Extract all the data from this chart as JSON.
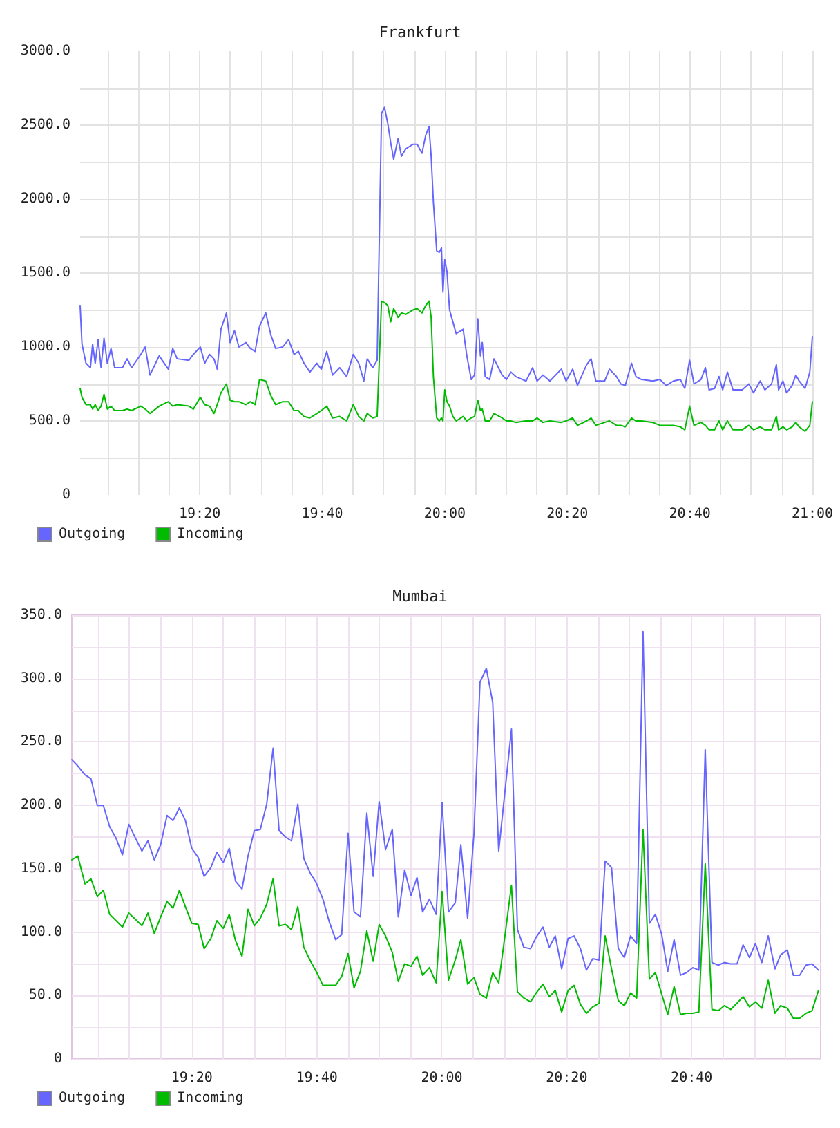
{
  "chart_data": [
    {
      "type": "line",
      "title": "Frankfurt",
      "x": [
        19.008,
        19.013,
        19.024,
        19.036,
        19.042,
        19.049,
        19.057,
        19.065,
        19.073,
        19.082,
        19.092,
        19.102,
        19.123,
        19.136,
        19.148,
        19.173,
        19.185,
        19.198,
        19.223,
        19.248,
        19.26,
        19.272,
        19.304,
        19.316,
        19.335,
        19.347,
        19.36,
        19.372,
        19.381,
        19.391,
        19.406,
        19.416,
        19.428,
        19.44,
        19.459,
        19.471,
        19.484,
        19.496,
        19.513,
        19.527,
        19.54,
        19.559,
        19.575,
        19.59,
        19.602,
        19.617,
        19.633,
        19.652,
        19.664,
        19.679,
        19.695,
        19.714,
        19.733,
        19.751,
        19.766,
        19.78,
        19.789,
        19.804,
        19.816,
        19.828,
        19.836,
        19.845,
        19.853,
        19.861,
        19.873,
        19.882,
        19.894,
        19.913,
        19.925,
        19.938,
        19.948,
        19.957,
        19.963,
        19.969,
        19.978,
        19.985,
        19.991,
        19.995,
        20.0,
        20.006,
        20.013,
        20.022,
        20.031,
        20.05,
        20.06,
        20.072,
        20.081,
        20.09,
        20.097,
        20.102,
        20.11,
        20.122,
        20.134,
        20.156,
        20.168,
        20.18,
        20.193,
        20.221,
        20.239,
        20.251,
        20.267,
        20.286,
        20.317,
        20.33,
        20.348,
        20.361,
        20.386,
        20.398,
        20.411,
        20.435,
        20.448,
        20.467,
        20.479,
        20.491,
        20.508,
        20.52,
        20.535,
        20.566,
        20.585,
        20.603,
        20.622,
        20.641,
        20.653,
        20.666,
        20.678,
        20.697,
        20.709,
        20.719,
        20.734,
        20.746,
        20.756,
        20.769,
        20.784,
        20.809,
        20.827,
        20.84,
        20.858,
        20.871,
        20.889,
        20.902,
        20.908,
        20.92,
        20.93,
        20.945,
        20.955,
        20.964,
        20.98,
        20.993,
        21.0
      ],
      "series": [
        {
          "name": "Outgoing",
          "color": "#6666ff",
          "values": [
            1280,
            1020,
            890,
            860,
            1020,
            890,
            1050,
            860,
            1060,
            890,
            990,
            860,
            860,
            920,
            860,
            950,
            1000,
            810,
            940,
            850,
            990,
            920,
            910,
            950,
            1000,
            890,
            950,
            920,
            850,
            1120,
            1230,
            1030,
            1110,
            1000,
            1030,
            990,
            970,
            1140,
            1230,
            1080,
            990,
            1000,
            1050,
            950,
            970,
            890,
            830,
            890,
            850,
            970,
            810,
            860,
            800,
            950,
            890,
            770,
            920,
            860,
            910,
            2580,
            2620,
            2510,
            2380,
            2270,
            2410,
            2290,
            2340,
            2370,
            2370,
            2310,
            2430,
            2490,
            2290,
            1980,
            1650,
            1640,
            1670,
            1370,
            1590,
            1510,
            1250,
            1170,
            1090,
            1120,
            940,
            780,
            810,
            1190,
            940,
            1030,
            800,
            780,
            920,
            810,
            780,
            830,
            800,
            770,
            860,
            770,
            810,
            770,
            850,
            770,
            850,
            740,
            880,
            920,
            770,
            770,
            850,
            800,
            750,
            740,
            890,
            800,
            780,
            770,
            780,
            740,
            770,
            780,
            720,
            910,
            750,
            780,
            860,
            710,
            720,
            800,
            710,
            830,
            710,
            710,
            750,
            690,
            770,
            710,
            750,
            880,
            710,
            770,
            690,
            740,
            810,
            770,
            720,
            830,
            1070
          ]
        },
        {
          "name": "Incoming",
          "color": "#00bb00",
          "values": [
            720,
            660,
            610,
            610,
            580,
            610,
            570,
            600,
            680,
            580,
            600,
            570,
            570,
            580,
            570,
            600,
            580,
            550,
            600,
            630,
            600,
            610,
            600,
            580,
            660,
            610,
            600,
            550,
            610,
            690,
            750,
            640,
            630,
            630,
            610,
            630,
            610,
            780,
            770,
            670,
            610,
            630,
            630,
            570,
            570,
            530,
            520,
            550,
            570,
            600,
            520,
            530,
            500,
            610,
            530,
            500,
            550,
            520,
            530,
            1310,
            1300,
            1280,
            1170,
            1260,
            1200,
            1230,
            1220,
            1250,
            1260,
            1230,
            1280,
            1310,
            1200,
            800,
            520,
            500,
            520,
            500,
            710,
            630,
            600,
            530,
            500,
            530,
            500,
            520,
            530,
            640,
            570,
            580,
            500,
            500,
            550,
            520,
            500,
            500,
            490,
            500,
            500,
            520,
            490,
            500,
            490,
            500,
            520,
            470,
            500,
            520,
            470,
            490,
            500,
            470,
            470,
            460,
            520,
            500,
            500,
            490,
            470,
            470,
            470,
            460,
            440,
            600,
            470,
            490,
            470,
            440,
            440,
            500,
            440,
            500,
            440,
            440,
            470,
            440,
            460,
            440,
            440,
            530,
            440,
            460,
            440,
            460,
            490,
            460,
            430,
            470,
            630
          ]
        }
      ],
      "xlim": [
        19.008,
        21.0
      ],
      "xticks": [
        {
          "value": 19.0833,
          "label": null
        },
        {
          "value": 19.1667,
          "label": null
        },
        {
          "value": 19.25,
          "label": null
        },
        {
          "value": 19.3333,
          "label": "19:20"
        },
        {
          "value": 19.4167,
          "label": null
        },
        {
          "value": 19.5,
          "label": null
        },
        {
          "value": 19.5833,
          "label": null
        },
        {
          "value": 19.6667,
          "label": "19:40"
        },
        {
          "value": 19.75,
          "label": null
        },
        {
          "value": 19.8333,
          "label": null
        },
        {
          "value": 19.9167,
          "label": null
        },
        {
          "value": 20,
          "label": "20:00"
        },
        {
          "value": 20.0833,
          "label": null
        },
        {
          "value": 20.1667,
          "label": null
        },
        {
          "value": 20.25,
          "label": null
        },
        {
          "value": 20.3333,
          "label": "20:20"
        },
        {
          "value": 20.4167,
          "label": null
        },
        {
          "value": 20.5,
          "label": null
        },
        {
          "value": 20.5833,
          "label": null
        },
        {
          "value": 20.6667,
          "label": "20:40"
        },
        {
          "value": 20.75,
          "label": null
        },
        {
          "value": 20.8333,
          "label": null
        },
        {
          "value": 20.9167,
          "label": null
        },
        {
          "value": 21,
          "label": "21:00"
        }
      ],
      "ylim": [
        0,
        3000
      ],
      "yticks": [
        0,
        {
          "value": 250,
          "label": null
        },
        {
          "value": 500,
          "label": "500.0"
        },
        {
          "value": 750,
          "label": null
        },
        {
          "value": 1000,
          "label": "1000.0"
        },
        {
          "value": 1250,
          "label": null
        },
        {
          "value": 1500,
          "label": "1500.0"
        },
        {
          "value": 1750,
          "label": null
        },
        {
          "value": 2000,
          "label": "2000.0"
        },
        {
          "value": 2250,
          "label": null
        },
        {
          "value": 2500,
          "label": "2500.0"
        },
        {
          "value": 2750,
          "label": null
        },
        {
          "value": 3000,
          "label": "3000.0"
        }
      ],
      "grid": true,
      "legend": "bottom left"
    },
    {
      "type": "line",
      "title": "Mumbai",
      "x": [
        19.013,
        19.029,
        19.048,
        19.064,
        19.081,
        19.097,
        19.114,
        19.131,
        19.148,
        19.165,
        19.183,
        19.2,
        19.216,
        19.233,
        19.25,
        19.267,
        19.283,
        19.3,
        19.316,
        19.333,
        19.35,
        19.366,
        19.384,
        19.4,
        19.417,
        19.433,
        19.45,
        19.467,
        19.483,
        19.5,
        19.516,
        19.533,
        19.55,
        19.566,
        19.583,
        19.599,
        19.616,
        19.632,
        19.65,
        19.665,
        19.683,
        19.7,
        19.717,
        19.733,
        19.75,
        19.766,
        19.783,
        19.8,
        19.817,
        19.833,
        19.85,
        19.868,
        19.884,
        19.901,
        19.918,
        19.934,
        19.949,
        19.967,
        19.985,
        20.001,
        20.018,
        20.036,
        20.051,
        20.069,
        20.086,
        20.102,
        20.119,
        20.136,
        20.152,
        20.169,
        20.186,
        20.202,
        20.219,
        20.237,
        20.252,
        20.27,
        20.287,
        20.303,
        20.32,
        20.337,
        20.353,
        20.37,
        20.386,
        20.403,
        20.42,
        20.436,
        20.453,
        20.471,
        20.487,
        20.504,
        20.52,
        20.537,
        20.554,
        20.57,
        20.587,
        20.603,
        20.62,
        20.637,
        20.653,
        20.67,
        20.686,
        20.703,
        20.721,
        20.738,
        20.754,
        20.771,
        20.788,
        20.804,
        20.821,
        20.837,
        20.854,
        20.871,
        20.889,
        20.904,
        20.922,
        20.938,
        20.955,
        20.972,
        20.988,
        21.005
      ],
      "series": [
        {
          "name": "Outgoing",
          "color": "#6666ff",
          "values": [
            236,
            231,
            224,
            221,
            200,
            200,
            183,
            174,
            161,
            185,
            174,
            164,
            172,
            157,
            169,
            192,
            188,
            198,
            188,
            166,
            159,
            144,
            151,
            163,
            155,
            166,
            140,
            134,
            160,
            180,
            181,
            201,
            245,
            180,
            175,
            172,
            201,
            158,
            146,
            139,
            126,
            108,
            94,
            98,
            178,
            116,
            112,
            194,
            144,
            203,
            165,
            181,
            112,
            149,
            129,
            143,
            116,
            126,
            114,
            202,
            116,
            123,
            169,
            111,
            178,
            297,
            308,
            281,
            164,
            212,
            260,
            102,
            88,
            87,
            96,
            104,
            88,
            97,
            71,
            95,
            97,
            87,
            70,
            79,
            78,
            156,
            151,
            87,
            80,
            97,
            91,
            337,
            107,
            114,
            98,
            69,
            94,
            66,
            68,
            72,
            70,
            244,
            76,
            74,
            76,
            75,
            75,
            90,
            80,
            91,
            76,
            97,
            71,
            82,
            86,
            66,
            66,
            74,
            75,
            70
          ]
        },
        {
          "name": "Incoming",
          "color": "#00bb00",
          "values": [
            157,
            160,
            138,
            142,
            128,
            133,
            114,
            109,
            104,
            115,
            110,
            105,
            115,
            99,
            112,
            124,
            119,
            133,
            120,
            107,
            106,
            87,
            95,
            109,
            103,
            114,
            93,
            81,
            118,
            105,
            111,
            122,
            142,
            105,
            106,
            102,
            120,
            88,
            77,
            69,
            58,
            58,
            58,
            65,
            83,
            56,
            69,
            101,
            77,
            106,
            97,
            84,
            61,
            75,
            73,
            81,
            66,
            72,
            60,
            132,
            62,
            78,
            94,
            59,
            64,
            51,
            48,
            68,
            60,
            98,
            137,
            53,
            48,
            45,
            52,
            59,
            49,
            54,
            37,
            54,
            58,
            43,
            36,
            41,
            44,
            97,
            71,
            46,
            42,
            52,
            48,
            181,
            63,
            68,
            51,
            35,
            57,
            35,
            36,
            36,
            37,
            154,
            39,
            38,
            42,
            39,
            44,
            49,
            41,
            45,
            40,
            62,
            36,
            42,
            40,
            32,
            32,
            36,
            38,
            54
          ]
        }
      ],
      "xlim": [
        19.013,
        21.011
      ],
      "xticks": [
        {
          "value": 19.0833,
          "label": null
        },
        {
          "value": 19.1667,
          "label": null
        },
        {
          "value": 19.25,
          "label": null
        },
        {
          "value": 19.3333,
          "label": "19:20"
        },
        {
          "value": 19.4167,
          "label": null
        },
        {
          "value": 19.5,
          "label": null
        },
        {
          "value": 19.5833,
          "label": null
        },
        {
          "value": 19.6667,
          "label": "19:40"
        },
        {
          "value": 19.75,
          "label": null
        },
        {
          "value": 19.8333,
          "label": null
        },
        {
          "value": 19.9167,
          "label": null
        },
        {
          "value": 20,
          "label": "20:00"
        },
        {
          "value": 20.0833,
          "label": null
        },
        {
          "value": 20.1667,
          "label": null
        },
        {
          "value": 20.25,
          "label": null
        },
        {
          "value": 20.3333,
          "label": "20:20"
        },
        {
          "value": 20.4167,
          "label": null
        },
        {
          "value": 20.5,
          "label": null
        },
        {
          "value": 20.5833,
          "label": null
        },
        {
          "value": 20.6667,
          "label": "20:40"
        },
        {
          "value": 20.75,
          "label": null
        },
        {
          "value": 20.8333,
          "label": null
        },
        {
          "value": 20.9167,
          "label": null
        }
      ],
      "ylim": [
        0,
        350
      ],
      "yticks": [
        0,
        {
          "value": 25,
          "label": null
        },
        {
          "value": 50,
          "label": "50.0"
        },
        {
          "value": 75,
          "label": null
        },
        {
          "value": 100,
          "label": "100.0"
        },
        {
          "value": 125,
          "label": null
        },
        {
          "value": 150,
          "label": "150.0"
        },
        {
          "value": 175,
          "label": null
        },
        {
          "value": 200,
          "label": "200.0"
        },
        {
          "value": 225,
          "label": null
        },
        {
          "value": 250,
          "label": "250.0"
        },
        {
          "value": 275,
          "label": null
        },
        {
          "value": 300,
          "label": "300.0"
        },
        {
          "value": 325,
          "label": null
        },
        {
          "value": 350,
          "label": "350.0"
        }
      ],
      "grid": true,
      "legend": "bottom left"
    }
  ]
}
